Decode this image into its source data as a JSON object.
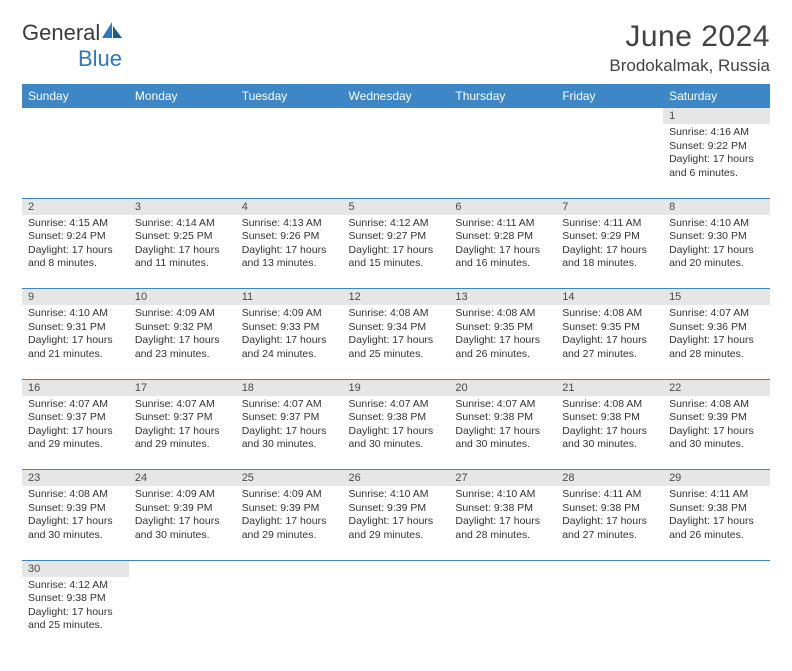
{
  "logo": {
    "text1": "General",
    "text2": "Blue"
  },
  "title": "June 2024",
  "location": "Brodokalmak, Russia",
  "colors": {
    "header_bg": "#3d87c7",
    "header_fg": "#ffffff",
    "daynum_bg": "#e6e6e6",
    "text": "#333333",
    "rule": "#3d87c7",
    "logo_gray": "#3a3a3a",
    "logo_blue": "#2f78bd"
  },
  "weekdays": [
    "Sunday",
    "Monday",
    "Tuesday",
    "Wednesday",
    "Thursday",
    "Friday",
    "Saturday"
  ],
  "weeks": [
    [
      null,
      null,
      null,
      null,
      null,
      null,
      {
        "d": "1",
        "sr": "4:16 AM",
        "ss": "9:22 PM",
        "dl": "17 hours and 6 minutes."
      }
    ],
    [
      {
        "d": "2",
        "sr": "4:15 AM",
        "ss": "9:24 PM",
        "dl": "17 hours and 8 minutes."
      },
      {
        "d": "3",
        "sr": "4:14 AM",
        "ss": "9:25 PM",
        "dl": "17 hours and 11 minutes."
      },
      {
        "d": "4",
        "sr": "4:13 AM",
        "ss": "9:26 PM",
        "dl": "17 hours and 13 minutes."
      },
      {
        "d": "5",
        "sr": "4:12 AM",
        "ss": "9:27 PM",
        "dl": "17 hours and 15 minutes."
      },
      {
        "d": "6",
        "sr": "4:11 AM",
        "ss": "9:28 PM",
        "dl": "17 hours and 16 minutes."
      },
      {
        "d": "7",
        "sr": "4:11 AM",
        "ss": "9:29 PM",
        "dl": "17 hours and 18 minutes."
      },
      {
        "d": "8",
        "sr": "4:10 AM",
        "ss": "9:30 PM",
        "dl": "17 hours and 20 minutes."
      }
    ],
    [
      {
        "d": "9",
        "sr": "4:10 AM",
        "ss": "9:31 PM",
        "dl": "17 hours and 21 minutes."
      },
      {
        "d": "10",
        "sr": "4:09 AM",
        "ss": "9:32 PM",
        "dl": "17 hours and 23 minutes."
      },
      {
        "d": "11",
        "sr": "4:09 AM",
        "ss": "9:33 PM",
        "dl": "17 hours and 24 minutes."
      },
      {
        "d": "12",
        "sr": "4:08 AM",
        "ss": "9:34 PM",
        "dl": "17 hours and 25 minutes."
      },
      {
        "d": "13",
        "sr": "4:08 AM",
        "ss": "9:35 PM",
        "dl": "17 hours and 26 minutes."
      },
      {
        "d": "14",
        "sr": "4:08 AM",
        "ss": "9:35 PM",
        "dl": "17 hours and 27 minutes."
      },
      {
        "d": "15",
        "sr": "4:07 AM",
        "ss": "9:36 PM",
        "dl": "17 hours and 28 minutes."
      }
    ],
    [
      {
        "d": "16",
        "sr": "4:07 AM",
        "ss": "9:37 PM",
        "dl": "17 hours and 29 minutes."
      },
      {
        "d": "17",
        "sr": "4:07 AM",
        "ss": "9:37 PM",
        "dl": "17 hours and 29 minutes."
      },
      {
        "d": "18",
        "sr": "4:07 AM",
        "ss": "9:37 PM",
        "dl": "17 hours and 30 minutes."
      },
      {
        "d": "19",
        "sr": "4:07 AM",
        "ss": "9:38 PM",
        "dl": "17 hours and 30 minutes."
      },
      {
        "d": "20",
        "sr": "4:07 AM",
        "ss": "9:38 PM",
        "dl": "17 hours and 30 minutes."
      },
      {
        "d": "21",
        "sr": "4:08 AM",
        "ss": "9:38 PM",
        "dl": "17 hours and 30 minutes."
      },
      {
        "d": "22",
        "sr": "4:08 AM",
        "ss": "9:39 PM",
        "dl": "17 hours and 30 minutes."
      }
    ],
    [
      {
        "d": "23",
        "sr": "4:08 AM",
        "ss": "9:39 PM",
        "dl": "17 hours and 30 minutes."
      },
      {
        "d": "24",
        "sr": "4:09 AM",
        "ss": "9:39 PM",
        "dl": "17 hours and 30 minutes."
      },
      {
        "d": "25",
        "sr": "4:09 AM",
        "ss": "9:39 PM",
        "dl": "17 hours and 29 minutes."
      },
      {
        "d": "26",
        "sr": "4:10 AM",
        "ss": "9:39 PM",
        "dl": "17 hours and 29 minutes."
      },
      {
        "d": "27",
        "sr": "4:10 AM",
        "ss": "9:38 PM",
        "dl": "17 hours and 28 minutes."
      },
      {
        "d": "28",
        "sr": "4:11 AM",
        "ss": "9:38 PM",
        "dl": "17 hours and 27 minutes."
      },
      {
        "d": "29",
        "sr": "4:11 AM",
        "ss": "9:38 PM",
        "dl": "17 hours and 26 minutes."
      }
    ],
    [
      {
        "d": "30",
        "sr": "4:12 AM",
        "ss": "9:38 PM",
        "dl": "17 hours and 25 minutes."
      },
      null,
      null,
      null,
      null,
      null,
      null
    ]
  ],
  "labels": {
    "sunrise": "Sunrise:",
    "sunset": "Sunset:",
    "daylight": "Daylight:"
  }
}
